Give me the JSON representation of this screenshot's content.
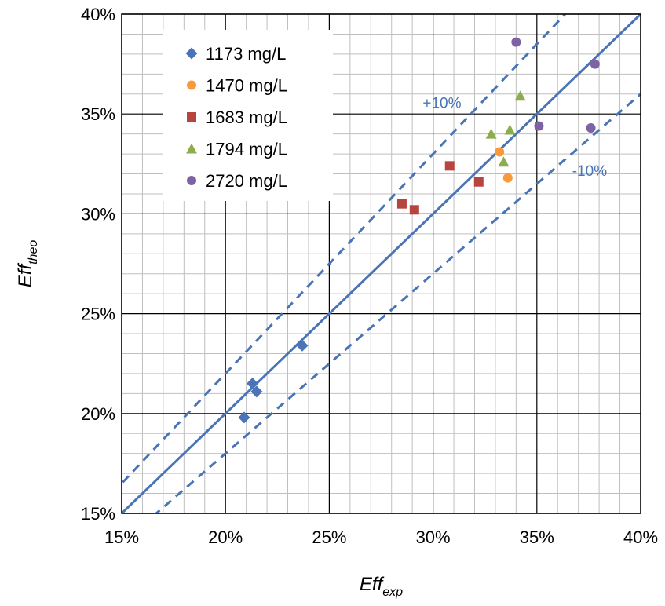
{
  "chart_data": {
    "type": "scatter",
    "title": "",
    "xlabel": "Eff",
    "xlabel_sub": "exp",
    "ylabel": "Eff",
    "ylabel_sub": "theo",
    "xlim": [
      15,
      40
    ],
    "ylim": [
      15,
      40
    ],
    "x_ticks": [
      15,
      20,
      25,
      30,
      35,
      40
    ],
    "y_ticks": [
      15,
      20,
      25,
      30,
      35,
      40
    ],
    "x_tick_labels": [
      "15%",
      "20%",
      "25%",
      "30%",
      "35%",
      "40%"
    ],
    "y_tick_labels": [
      "15%",
      "20%",
      "25%",
      "30%",
      "35%",
      "40%"
    ],
    "major_grid_step": 5,
    "minor_grid_step": 1,
    "grid": true,
    "legend_position": "top-left",
    "series": [
      {
        "name": "1173 mg/L",
        "marker": "diamond",
        "color": "#4a74b5",
        "points": [
          [
            20.9,
            19.8
          ],
          [
            21.3,
            21.5
          ],
          [
            21.5,
            21.1
          ],
          [
            23.7,
            23.4
          ]
        ]
      },
      {
        "name": "1470 mg/L",
        "marker": "circle",
        "color": "#f79a3c",
        "points": [
          [
            33.2,
            33.1
          ],
          [
            33.6,
            31.8
          ]
        ]
      },
      {
        "name": "1683 mg/L",
        "marker": "square",
        "color": "#b6443f",
        "points": [
          [
            28.5,
            30.5
          ],
          [
            29.1,
            30.2
          ],
          [
            30.8,
            32.4
          ],
          [
            32.2,
            31.6
          ]
        ]
      },
      {
        "name": "1794 mg/L",
        "marker": "triangle",
        "color": "#8cad4d",
        "points": [
          [
            32.8,
            34.0
          ],
          [
            33.4,
            32.6
          ],
          [
            33.7,
            34.2
          ],
          [
            34.2,
            35.9
          ]
        ]
      },
      {
        "name": "2720 mg/L",
        "marker": "circle",
        "color": "#7d63a3",
        "points": [
          [
            34.0,
            38.6
          ],
          [
            35.1,
            34.4
          ],
          [
            37.6,
            34.3
          ],
          [
            37.8,
            37.5
          ]
        ]
      }
    ],
    "reference_lines": [
      {
        "label": "",
        "factor": 1.0,
        "style": "solid",
        "color": "#4a74b5"
      },
      {
        "label": "+10%",
        "factor": 1.1,
        "style": "dashed",
        "color": "#4a74b5"
      },
      {
        "label": "-10%",
        "factor": 0.9,
        "style": "dashed",
        "color": "#4a74b5"
      }
    ]
  }
}
